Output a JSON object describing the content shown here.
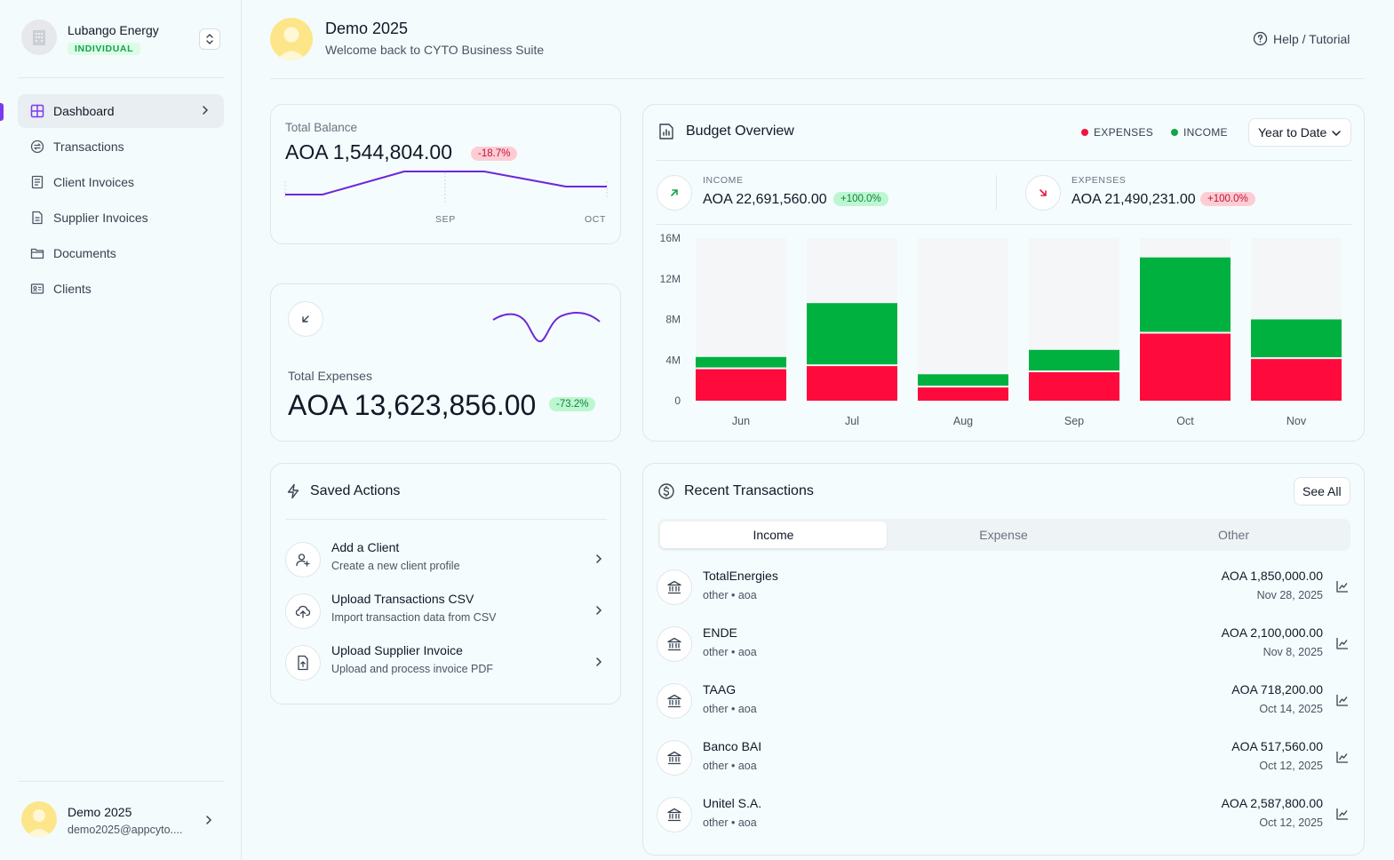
{
  "org": {
    "name": "Lubango Energy",
    "badge": "INDIVIDUAL"
  },
  "nav": [
    {
      "label": "Dashboard",
      "icon": "grid-icon",
      "active": true
    },
    {
      "label": "Transactions",
      "icon": "transfer-icon"
    },
    {
      "label": "Client Invoices",
      "icon": "receipt-icon"
    },
    {
      "label": "Supplier Invoices",
      "icon": "document-icon"
    },
    {
      "label": "Documents",
      "icon": "folder-icon"
    },
    {
      "label": "Clients",
      "icon": "id-card-icon"
    }
  ],
  "user": {
    "name": "Demo 2025",
    "email": "demo2025@appcyto...."
  },
  "header": {
    "title": "Demo 2025",
    "subtitle": "Welcome back to CYTO Business Suite",
    "help": "Help / Tutorial"
  },
  "total_balance": {
    "label": "Total Balance",
    "value": "AOA 1,544,804.00",
    "change": "-18.7%",
    "x_labels": [
      "SEP",
      "OCT"
    ]
  },
  "total_expenses": {
    "label": "Total Expenses",
    "value": "AOA 13,623,856.00",
    "change": "-73.2%"
  },
  "saved_actions": {
    "title": "Saved Actions",
    "items": [
      {
        "title": "Add a Client",
        "desc": "Create a new client profile",
        "icon": "user-plus-icon"
      },
      {
        "title": "Upload Transactions CSV",
        "desc": "Import transaction data from CSV",
        "icon": "cloud-upload-icon"
      },
      {
        "title": "Upload Supplier Invoice",
        "desc": "Upload and process invoice PDF",
        "icon": "file-upload-icon"
      }
    ]
  },
  "budget": {
    "title": "Budget Overview",
    "legend_expenses": "EXPENSES",
    "legend_income": "INCOME",
    "period": "Year to Date",
    "income": {
      "label": "INCOME",
      "value": "AOA 22,691,560.00",
      "change": "+100.0%"
    },
    "expenses": {
      "label": "EXPENSES",
      "value": "AOA 21,490,231.00",
      "change": "+100.0%"
    },
    "colors": {
      "income": "#00b140",
      "expenses": "#ff0a3c",
      "track": "#f4f6f8"
    }
  },
  "chart_data": {
    "type": "bar",
    "stacked": true,
    "categories": [
      "Jun",
      "Jul",
      "Aug",
      "Sep",
      "Oct",
      "Nov"
    ],
    "series": [
      {
        "name": "EXPENSES",
        "values": [
          3.1,
          3.4,
          1.3,
          2.8,
          6.6,
          4.1
        ]
      },
      {
        "name": "INCOME",
        "values": [
          1.2,
          6.2,
          1.3,
          2.2,
          7.5,
          3.9
        ]
      }
    ],
    "y_ticks": [
      "0",
      "4M",
      "8M",
      "12M",
      "16M"
    ],
    "ylim": [
      0,
      16
    ],
    "y_unit": "M"
  },
  "recent": {
    "title": "Recent Transactions",
    "see_all": "See All",
    "tabs": [
      "Income",
      "Expense",
      "Other"
    ],
    "items": [
      {
        "name": "TotalEnergies",
        "meta": "other • aoa",
        "amount": "AOA 1,850,000.00",
        "date": "Nov 28, 2025"
      },
      {
        "name": "ENDE",
        "meta": "other • aoa",
        "amount": "AOA 2,100,000.00",
        "date": "Nov 8, 2025"
      },
      {
        "name": "TAAG",
        "meta": "other • aoa",
        "amount": "AOA 718,200.00",
        "date": "Oct 14, 2025"
      },
      {
        "name": "Banco BAI",
        "meta": "other • aoa",
        "amount": "AOA 517,560.00",
        "date": "Oct 12, 2025"
      },
      {
        "name": "Unitel S.A.",
        "meta": "other • aoa",
        "amount": "AOA 2,587,800.00",
        "date": "Oct 12, 2025"
      }
    ]
  }
}
